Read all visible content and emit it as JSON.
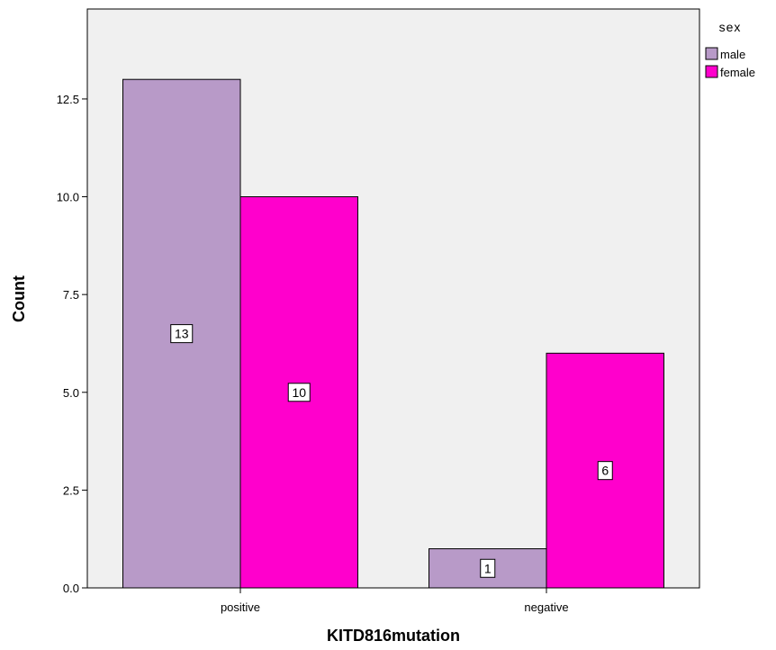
{
  "chart_data": {
    "type": "bar",
    "categories": [
      "positive",
      "negative"
    ],
    "series": [
      {
        "name": "male",
        "values": [
          13,
          1
        ],
        "color": "#b89ac8"
      },
      {
        "name": "female",
        "values": [
          10,
          6
        ],
        "color": "#ff00cc"
      }
    ],
    "xlabel": "KITD816mutation",
    "ylabel": "Count",
    "ylim": [
      0,
      14.8
    ],
    "yticks": [
      "0.0",
      "2.5",
      "5.0",
      "7.5",
      "10.0",
      "12.5"
    ],
    "legend": {
      "title": "sex",
      "placement": "top-right"
    },
    "grid": false,
    "plot_background": "#f0f0f0"
  }
}
